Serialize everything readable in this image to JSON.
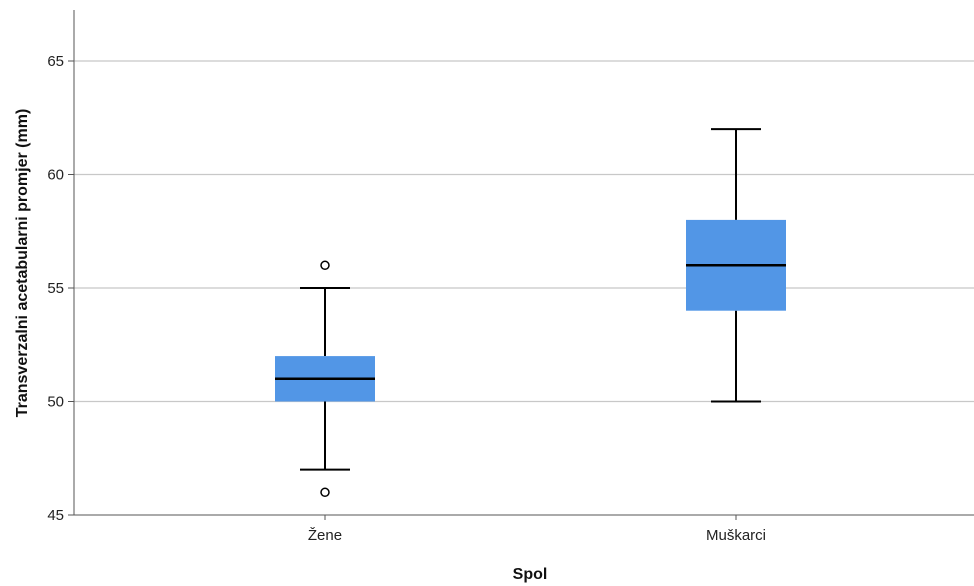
{
  "chart_data": {
    "type": "boxplot",
    "title": "",
    "xlabel": "Spol",
    "ylabel": "Transverzalni acetabularni promjer (mm)",
    "ylim": [
      45,
      67
    ],
    "yticks": [
      45,
      50,
      55,
      60,
      65
    ],
    "grid": true,
    "categories": [
      "Žene",
      "Muškarci"
    ],
    "boxes": [
      {
        "category": "Žene",
        "whisker_low": 47,
        "q1": 50,
        "median": 51,
        "q3": 52,
        "whisker_high": 55,
        "outliers": [
          46,
          56
        ]
      },
      {
        "category": "Muškarci",
        "whisker_low": 50,
        "q1": 54,
        "median": 56,
        "q3": 58,
        "whisker_high": 62,
        "outliers": []
      }
    ],
    "colors": {
      "box_fill": "#5296e6",
      "line": "#000000",
      "grid": "#c8c8c8",
      "axis": "#555555"
    }
  }
}
